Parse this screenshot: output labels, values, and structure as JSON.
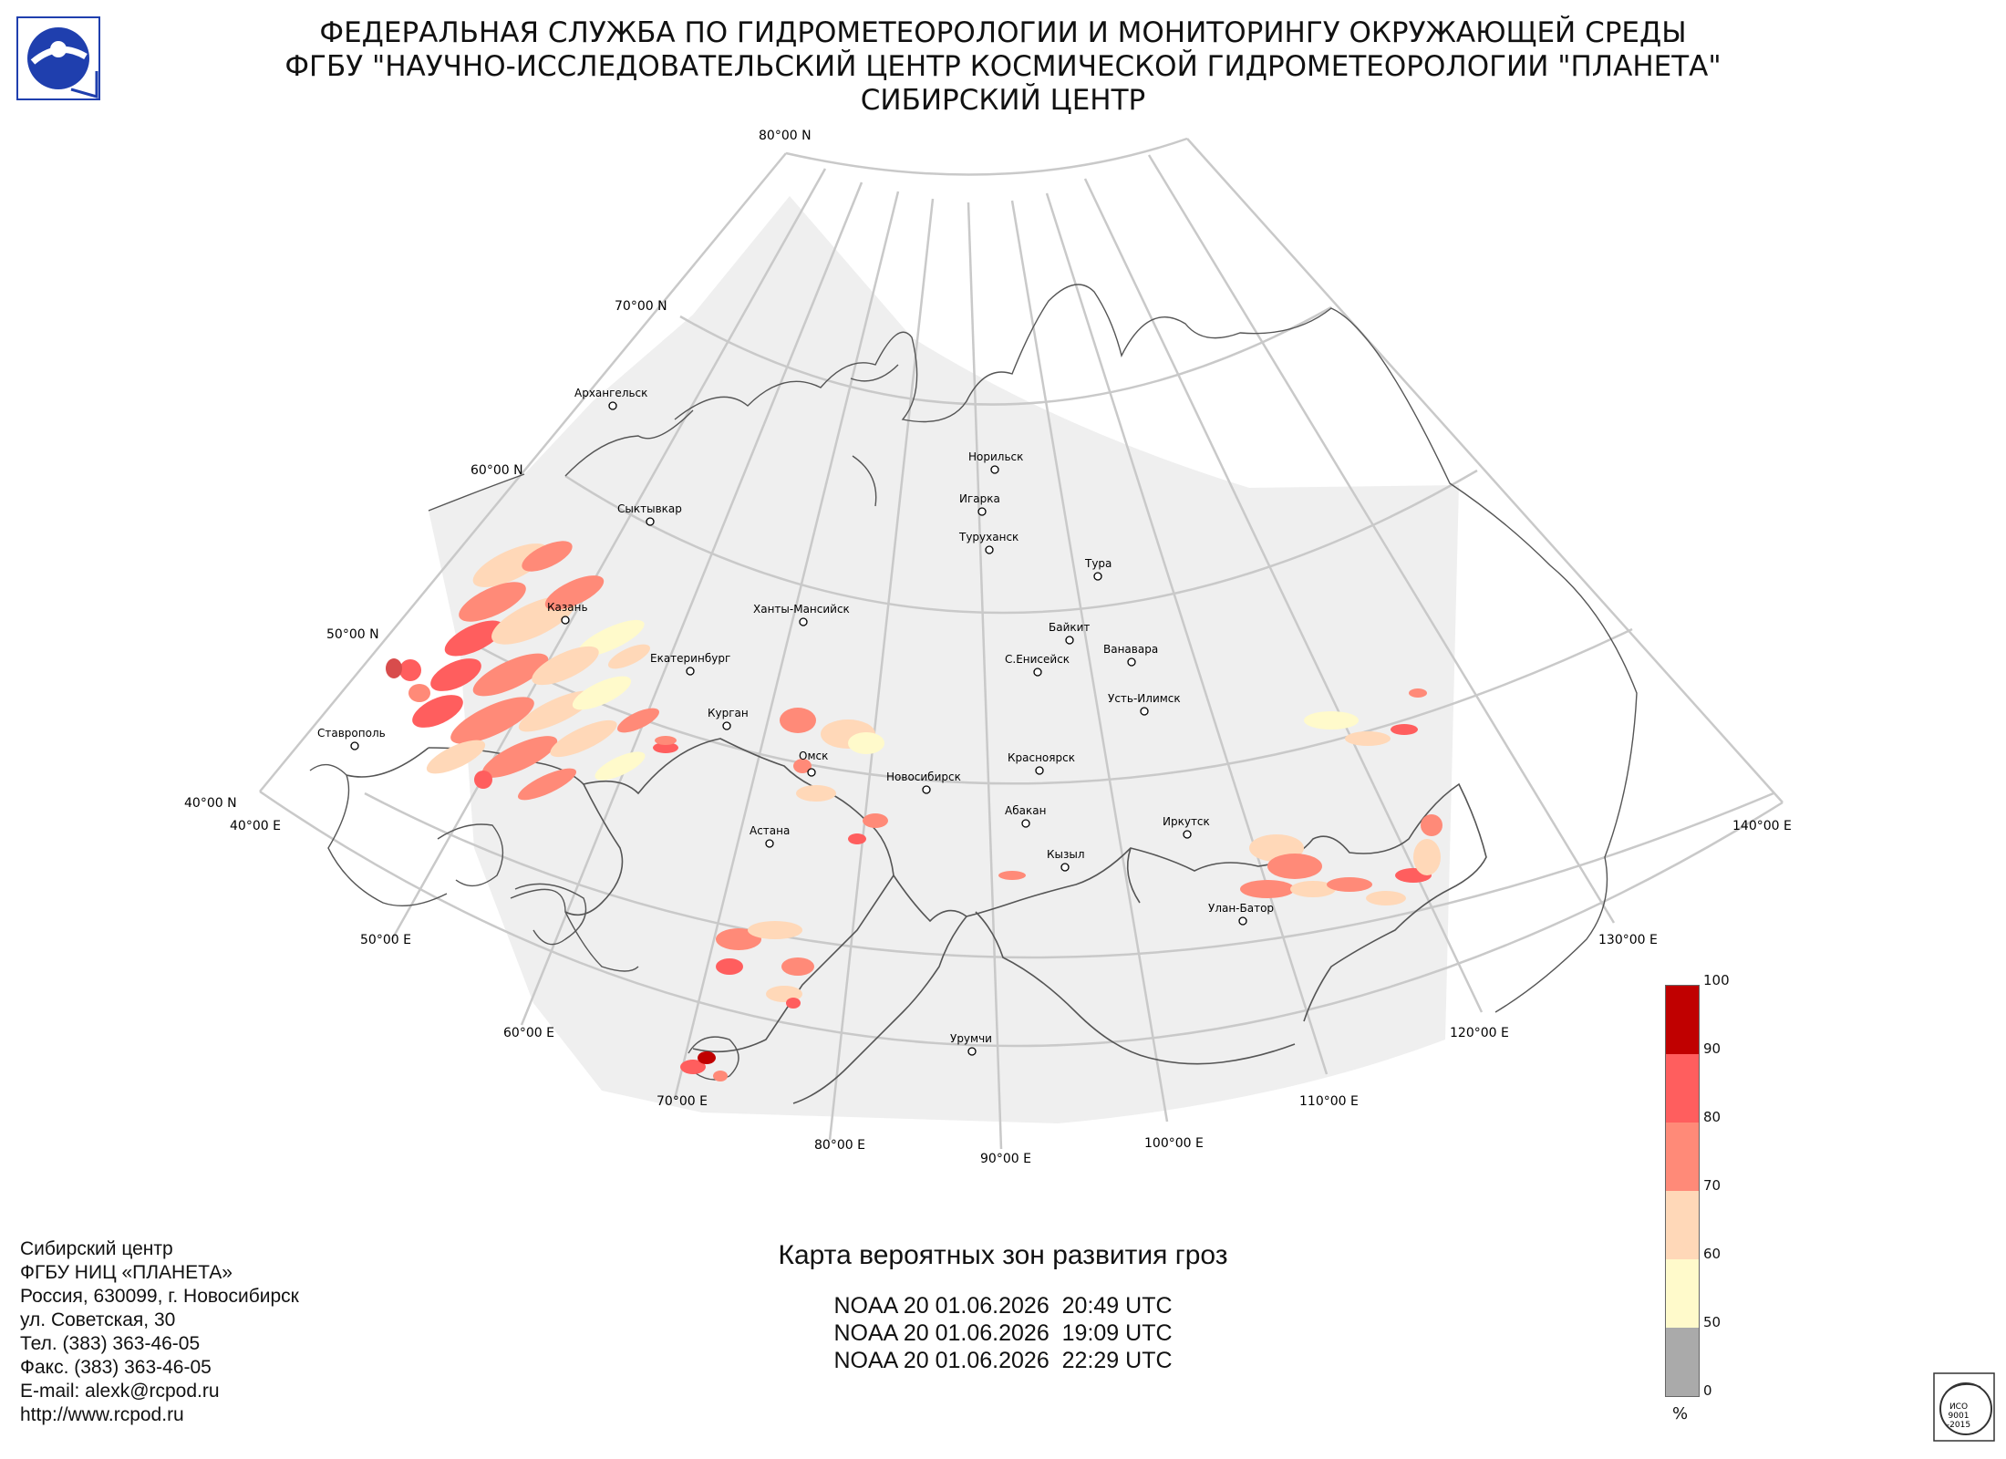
{
  "header": {
    "line1": "ФЕДЕРАЛЬНАЯ СЛУЖБА ПО ГИДРОМЕТЕОРОЛОГИИ И МОНИТОРИНГУ ОКРУЖАЮЩЕЙ СРЕДЫ",
    "line2": "ФГБУ \"НАУЧНО-ИССЛЕДОВАТЕЛЬСКИЙ ЦЕНТР КОСМИЧЕСКОЙ ГИДРОМЕТЕОРОЛОГИИ \"ПЛАНЕТА\"",
    "line3": "СИБИРСКИЙ ЦЕНТР"
  },
  "logo_icon": "planeta-logo-icon",
  "map": {
    "lat_labels": [
      "80°00 N",
      "70°00 N",
      "60°00 N",
      "50°00 N",
      "40°00 N"
    ],
    "lon_labels": [
      "40°00 E",
      "50°00 E",
      "60°00 E",
      "70°00 E",
      "80°00 E",
      "90°00 E",
      "100°00 E",
      "110°00 E",
      "120°00 E",
      "130°00 E",
      "140°00 E"
    ],
    "cities": [
      "Архангельск",
      "Сыктывкар",
      "Казань",
      "Екатеринбург",
      "Ханты-Мансийск",
      "Курган",
      "Омск",
      "Ставрополь",
      "Астана",
      "Новосибирск",
      "Норильск",
      "Игарка",
      "Туруханск",
      "Тура",
      "Байкит",
      "С.Енисейск",
      "Ванавара",
      "Усть-Илимск",
      "Красноярск",
      "Абакан",
      "Кызыл",
      "Иркутск",
      "Улан-Батор",
      "Урумчи"
    ]
  },
  "map_title": "Карта вероятных зон развития гроз",
  "passes": [
    "NOAA 20 01.06.2026  20:49 UTC",
    "NOAA 20 01.06.2026  19:09 UTC",
    "NOAA 20 01.06.2026  22:29 UTC"
  ],
  "contacts": [
    "Сибирский центр",
    "ФГБУ НИЦ «ПЛАНЕТА»",
    "Россия, 630099, г. Новосибирск",
    "ул. Советская, 30",
    "Тел. (383) 363-46-05",
    "Факс. (383) 363-46-05",
    "E-mail: alexk@rcpod.ru",
    "http://www.rcpod.ru"
  ],
  "colorbar": {
    "unit": "%",
    "ticks": [
      "100",
      "90",
      "80",
      "70",
      "60",
      "50",
      "0"
    ],
    "colors": [
      "#c00000",
      "#ff5e5e",
      "#ff8a78",
      "#ffd8b8",
      "#fffacb",
      "#aaaaaa"
    ]
  },
  "cert_text": [
    "ИСО",
    "9001",
    "-2015"
  ]
}
